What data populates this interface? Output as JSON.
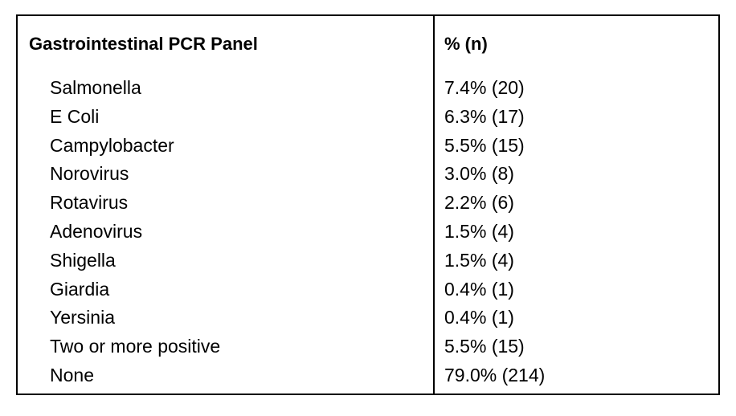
{
  "table": {
    "header": {
      "col1": "Gastrointestinal PCR Panel",
      "col2": "% (n)"
    },
    "rows": [
      {
        "name": "Salmonella",
        "value": "7.4% (20)"
      },
      {
        "name": "E Coli",
        "value": "6.3% (17)"
      },
      {
        "name": "Campylobacter",
        "value": "5.5% (15)"
      },
      {
        "name": "Norovirus",
        "value": "3.0% (8)"
      },
      {
        "name": "Rotavirus",
        "value": "2.2% (6)"
      },
      {
        "name": "Adenovirus",
        "value": "1.5% (4)"
      },
      {
        "name": "Shigella",
        "value": "1.5% (4)"
      },
      {
        "name": "Giardia",
        "value": "0.4% (1)"
      },
      {
        "name": "Yersinia",
        "value": "0.4% (1)"
      },
      {
        "name": "Two or more positive",
        "value": "5.5% (15)"
      },
      {
        "name": "None",
        "value": "79.0% (214)"
      }
    ]
  }
}
